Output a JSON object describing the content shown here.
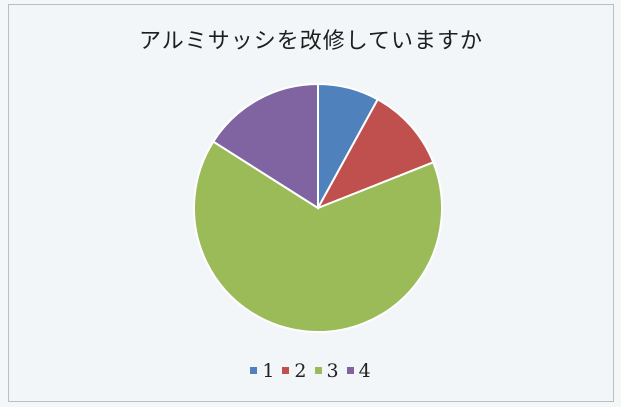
{
  "chart_data": {
    "type": "pie",
    "title": "アルミサッシを改修していますか",
    "categories": [
      "1",
      "2",
      "3",
      "4"
    ],
    "values": [
      8,
      11,
      65,
      16
    ],
    "colors": [
      "#4f81bd",
      "#c0504d",
      "#9bbb59",
      "#8064a2"
    ],
    "legend_position": "bottom"
  }
}
